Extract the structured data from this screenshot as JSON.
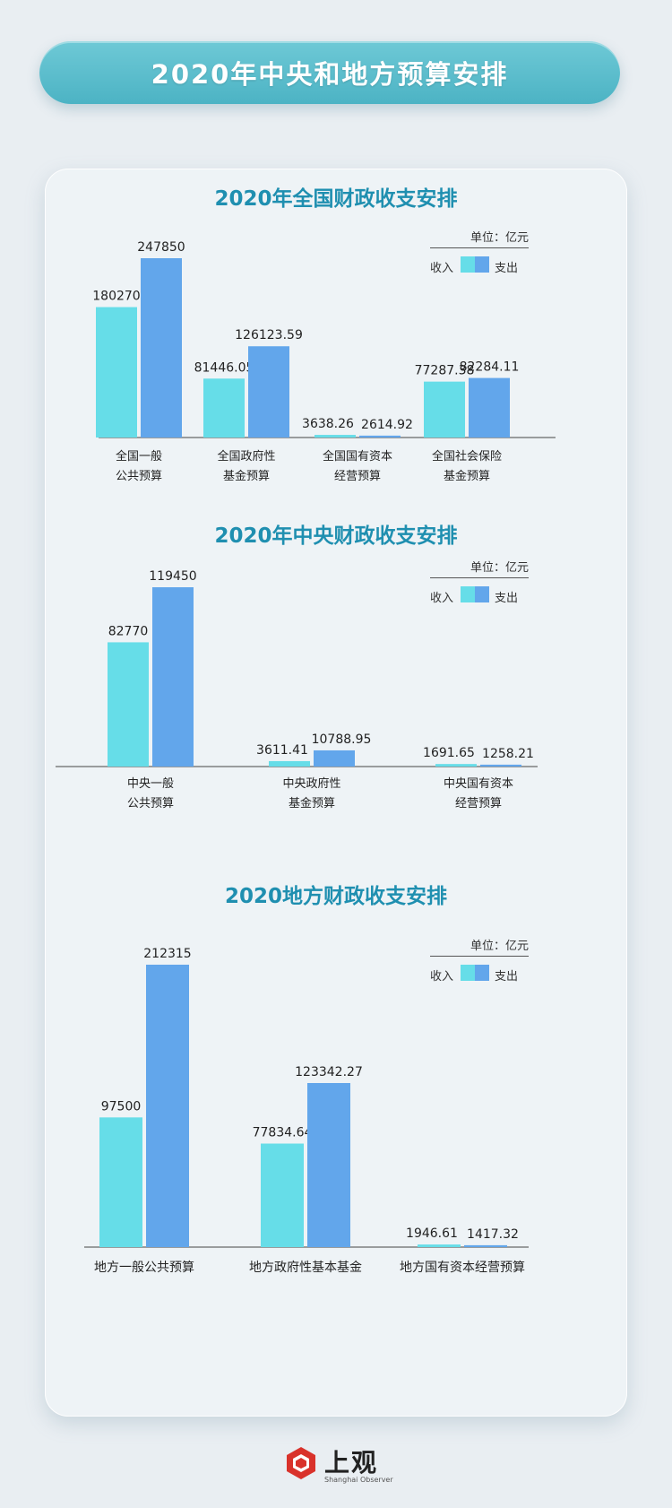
{
  "banner": {
    "title": "2020年中央和地方预算安排"
  },
  "legend": {
    "unit": "单位：亿元",
    "income": "收入",
    "expense": "支出"
  },
  "colors": {
    "income": "#66dde8",
    "expense": "#62a6eb",
    "accent": "#1f8fb0"
  },
  "chart_data": [
    {
      "type": "bar",
      "title": "2020年全国财政收支安排",
      "categories": [
        [
          "全国一般",
          "公共预算"
        ],
        [
          "全国政府性",
          "基金预算"
        ],
        [
          "全国国有资本",
          "经营预算"
        ],
        [
          "全国社会保险",
          "基金预算"
        ]
      ],
      "series": [
        {
          "name": "收入",
          "values": [
            180270,
            81446.05,
            3638.26,
            77287.38
          ]
        },
        {
          "name": "支出",
          "values": [
            247850,
            126123.59,
            2614.92,
            82284.11
          ]
        }
      ],
      "value_labels": [
        [
          "180270",
          "81446.05",
          "3638.26",
          "77287.38"
        ],
        [
          "247850",
          "126123.59",
          "2614.92",
          "82284.11"
        ]
      ],
      "legend_position": "top-right"
    },
    {
      "type": "bar",
      "title": "2020年中央财政收支安排",
      "categories": [
        [
          "中央一般",
          "公共预算"
        ],
        [
          "中央政府性",
          "基金预算"
        ],
        [
          "中央国有资本",
          "经营预算"
        ]
      ],
      "series": [
        {
          "name": "收入",
          "values": [
            82770,
            3611.41,
            1691.65
          ]
        },
        {
          "name": "支出",
          "values": [
            119450,
            10788.95,
            1258.21
          ]
        }
      ],
      "value_labels": [
        [
          "82770",
          "3611.41",
          "1691.65"
        ],
        [
          "119450",
          "10788.95",
          "1258.21"
        ]
      ],
      "legend_position": "top-right"
    },
    {
      "type": "bar",
      "title": "2020地方财政收支安排",
      "categories": [
        [
          "地方一般公共预算"
        ],
        [
          "地方政府性基本基金"
        ],
        [
          "地方国有资本经营预算"
        ]
      ],
      "series": [
        {
          "name": "收入",
          "values": [
            97500,
            77834.64,
            1946.61
          ]
        },
        {
          "name": "支出",
          "values": [
            212315,
            123342.27,
            1417.32
          ]
        }
      ],
      "value_labels": [
        [
          "97500",
          "77834.64",
          "1946.61"
        ],
        [
          "212315",
          "123342.27",
          "1417.32"
        ]
      ],
      "legend_position": "top-right"
    }
  ],
  "footer": {
    "logo_text": "上观",
    "logo_sub": "Shanghai Observer"
  }
}
